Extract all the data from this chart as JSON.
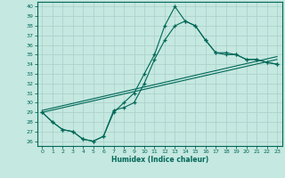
{
  "xlabel": "Humidex (Indice chaleur)",
  "xlim": [
    -0.5,
    23.5
  ],
  "ylim": [
    25.5,
    40.5
  ],
  "xticks": [
    0,
    1,
    2,
    3,
    4,
    5,
    6,
    7,
    8,
    9,
    10,
    11,
    12,
    13,
    14,
    15,
    16,
    17,
    18,
    19,
    20,
    21,
    22,
    23
  ],
  "yticks": [
    26,
    27,
    28,
    29,
    30,
    31,
    32,
    33,
    34,
    35,
    36,
    37,
    38,
    39,
    40
  ],
  "bg_color": "#c5e8e0",
  "grid_color": "#a8cfc8",
  "line_color": "#006858",
  "curve1_x": [
    0,
    1,
    2,
    3,
    4,
    5,
    6,
    7,
    8,
    9,
    10,
    11,
    12,
    13,
    14,
    15,
    16,
    17,
    18,
    19,
    20,
    21,
    22,
    23
  ],
  "curve1_y": [
    29,
    28,
    27.2,
    27,
    26.2,
    26,
    26.5,
    29,
    30,
    31,
    33,
    35,
    38,
    40,
    38.5,
    38,
    36.5,
    35.2,
    35.2,
    35,
    34.5,
    34.5,
    34.2,
    34
  ],
  "curve2_x": [
    0,
    1,
    2,
    3,
    4,
    5,
    6,
    7,
    8,
    9,
    10,
    11,
    12,
    13,
    14,
    15,
    16,
    17,
    18,
    19,
    20,
    21,
    22,
    23
  ],
  "curve2_y": [
    29,
    28,
    27.2,
    27,
    26.2,
    26,
    26.5,
    29.2,
    29.5,
    30,
    32,
    34.5,
    36.5,
    38,
    38.5,
    38,
    36.5,
    35.2,
    35,
    35,
    34.5,
    34.5,
    34.2,
    34
  ],
  "line3_x": [
    0,
    23
  ],
  "line3_y": [
    29.0,
    34.5
  ],
  "line4_x": [
    0,
    23
  ],
  "line4_y": [
    29.2,
    34.8
  ]
}
